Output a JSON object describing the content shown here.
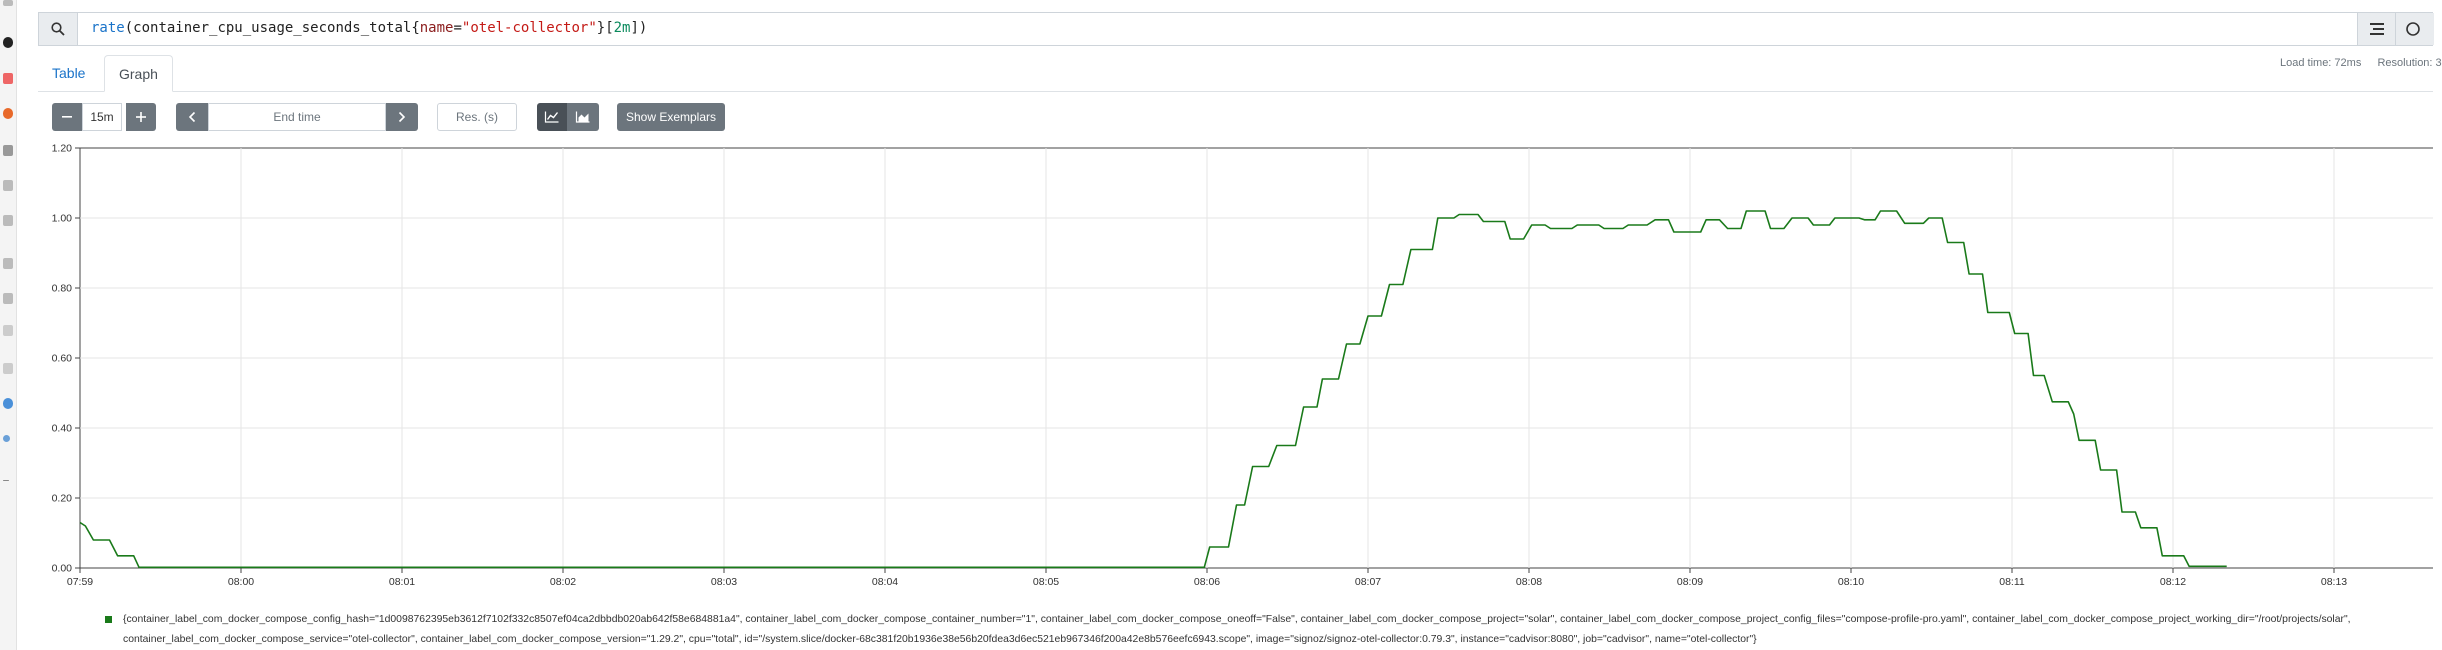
{
  "query": {
    "fn": "rate",
    "metric": "container_cpu_usage_seconds_total",
    "label_key": "name",
    "label_value": "\"otel-collector\"",
    "range": "2m"
  },
  "tabs": {
    "table": "Table",
    "graph": "Graph"
  },
  "status": {
    "load_time": "Load time: 72ms",
    "resolution": "Resolution: 3"
  },
  "controls": {
    "range_value": "15m",
    "end_time_placeholder": "End time",
    "res_placeholder": "Res. (s)",
    "show_exemplars": "Show Exemplars"
  },
  "colors": {
    "series": "#1a7a1a",
    "accent": "#1a73c9",
    "button": "#6c757d"
  },
  "chart_data": {
    "type": "line",
    "ylim": [
      0,
      1.2
    ],
    "y_ticks": [
      "0.00",
      "0.20",
      "0.40",
      "0.60",
      "0.80",
      "1.00",
      "1.20"
    ],
    "x_ticks": [
      "07:59",
      "08:00",
      "08:01",
      "08:02",
      "08:03",
      "08:04",
      "08:05",
      "08:06",
      "08:07",
      "08:08",
      "08:09",
      "08:10",
      "08:11",
      "08:12",
      "08:13"
    ],
    "x_start": "07:59",
    "grid": true,
    "series": [
      {
        "color": "#1a7a1a",
        "points": [
          [
            "07:59:00",
            0.13
          ],
          [
            "07:59:02",
            0.12
          ],
          [
            "07:59:05",
            0.08
          ],
          [
            "07:59:11",
            0.08
          ],
          [
            "07:59:14",
            0.035
          ],
          [
            "07:59:20",
            0.035
          ],
          [
            "07:59:22",
            0.002
          ],
          [
            "08:05:59",
            0.002
          ],
          [
            "08:06:01",
            0.06
          ],
          [
            "08:06:08",
            0.06
          ],
          [
            "08:06:11",
            0.18
          ],
          [
            "08:06:14",
            0.18
          ],
          [
            "08:06:17",
            0.29
          ],
          [
            "08:06:23",
            0.29
          ],
          [
            "08:06:26",
            0.35
          ],
          [
            "08:06:33",
            0.35
          ],
          [
            "08:06:36",
            0.46
          ],
          [
            "08:06:41",
            0.46
          ],
          [
            "08:06:43",
            0.54
          ],
          [
            "08:06:49",
            0.54
          ],
          [
            "08:06:52",
            0.64
          ],
          [
            "08:06:57",
            0.64
          ],
          [
            "08:07:00",
            0.72
          ],
          [
            "08:07:05",
            0.72
          ],
          [
            "08:07:08",
            0.81
          ],
          [
            "08:07:13",
            0.81
          ],
          [
            "08:07:16",
            0.91
          ],
          [
            "08:07:24",
            0.91
          ],
          [
            "08:07:26",
            1.0
          ],
          [
            "08:07:32",
            1.0
          ],
          [
            "08:07:34",
            1.01
          ],
          [
            "08:07:41",
            1.01
          ],
          [
            "08:07:43",
            0.99
          ],
          [
            "08:07:51",
            0.99
          ],
          [
            "08:07:53",
            0.94
          ],
          [
            "08:07:58",
            0.94
          ],
          [
            "08:08:01",
            0.98
          ],
          [
            "08:08:06",
            0.98
          ],
          [
            "08:08:08",
            0.97
          ],
          [
            "08:08:16",
            0.97
          ],
          [
            "08:08:18",
            0.98
          ],
          [
            "08:08:26",
            0.98
          ],
          [
            "08:08:28",
            0.97
          ],
          [
            "08:08:35",
            0.97
          ],
          [
            "08:08:37",
            0.98
          ],
          [
            "08:08:44",
            0.98
          ],
          [
            "08:08:47",
            0.995
          ],
          [
            "08:08:52",
            0.995
          ],
          [
            "08:08:54",
            0.96
          ],
          [
            "08:09:04",
            0.96
          ],
          [
            "08:09:06",
            0.995
          ],
          [
            "08:09:11",
            0.995
          ],
          [
            "08:09:14",
            0.97
          ],
          [
            "08:09:19",
            0.97
          ],
          [
            "08:09:21",
            1.02
          ],
          [
            "08:09:28",
            1.02
          ],
          [
            "08:09:30",
            0.97
          ],
          [
            "08:09:35",
            0.97
          ],
          [
            "08:09:38",
            1.0
          ],
          [
            "08:09:44",
            1.0
          ],
          [
            "08:09:46",
            0.98
          ],
          [
            "08:09:52",
            0.98
          ],
          [
            "08:09:54",
            1.0
          ],
          [
            "08:10:03",
            1.0
          ],
          [
            "08:10:05",
            0.995
          ],
          [
            "08:10:09",
            0.995
          ],
          [
            "08:10:11",
            1.02
          ],
          [
            "08:10:17",
            1.02
          ],
          [
            "08:10:20",
            0.985
          ],
          [
            "08:10:27",
            0.985
          ],
          [
            "08:10:29",
            1.0
          ],
          [
            "08:10:34",
            1.0
          ],
          [
            "08:10:36",
            0.93
          ],
          [
            "08:10:42",
            0.93
          ],
          [
            "08:10:44",
            0.84
          ],
          [
            "08:10:49",
            0.84
          ],
          [
            "08:10:51",
            0.73
          ],
          [
            "08:10:59",
            0.73
          ],
          [
            "08:11:01",
            0.67
          ],
          [
            "08:11:06",
            0.67
          ],
          [
            "08:11:08",
            0.55
          ],
          [
            "08:11:12",
            0.55
          ],
          [
            "08:11:15",
            0.475
          ],
          [
            "08:11:21",
            0.475
          ],
          [
            "08:11:23",
            0.44
          ],
          [
            "08:11:25",
            0.365
          ],
          [
            "08:11:31",
            0.365
          ],
          [
            "08:11:33",
            0.28
          ],
          [
            "08:11:39",
            0.28
          ],
          [
            "08:11:41",
            0.16
          ],
          [
            "08:11:46",
            0.16
          ],
          [
            "08:11:48",
            0.115
          ],
          [
            "08:11:54",
            0.115
          ],
          [
            "08:11:56",
            0.035
          ],
          [
            "08:12:04",
            0.035
          ],
          [
            "08:12:06",
            0.005
          ],
          [
            "08:12:20",
            0.005
          ]
        ]
      }
    ]
  },
  "legend": {
    "text": "{container_label_com_docker_compose_config_hash=\"1d0098762395eb3612f7102f332c8507ef04ca2dbbdb020ab642f58e684881a4\", container_label_com_docker_compose_container_number=\"1\", container_label_com_docker_compose_oneoff=\"False\", container_label_com_docker_compose_project=\"solar\", container_label_com_docker_compose_project_config_files=\"compose-profile-pro.yaml\", container_label_com_docker_compose_project_working_dir=\"/root/projects/solar\", container_label_com_docker_compose_service=\"otel-collector\", container_label_com_docker_compose_version=\"1.29.2\", cpu=\"total\", id=\"/system.slice/docker-68c381f20b1936e38e56b20fdea3d6ec521eb967346f200a42e8b576eefc6943.scope\", image=\"signoz/signoz-otel-collector:0.79.3\", instance=\"cadvisor:8080\", job=\"cadvisor\", name=\"otel-collector\"}"
  }
}
